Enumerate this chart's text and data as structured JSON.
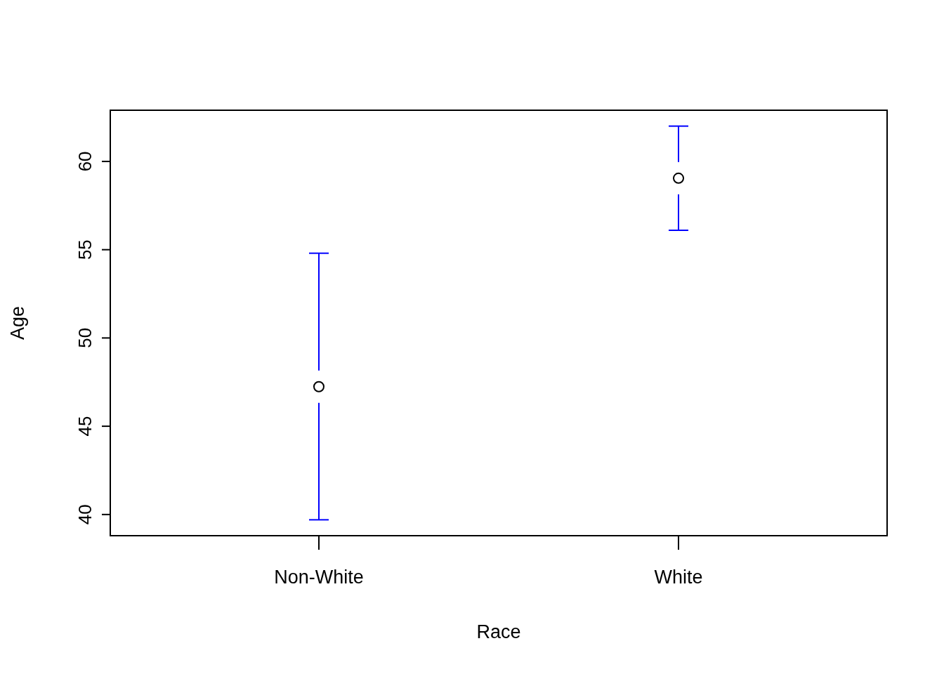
{
  "chart_data": {
    "type": "scatter",
    "xlabel": "Race",
    "ylabel": "Age",
    "categories": [
      "Non-White",
      "White"
    ],
    "series": [
      {
        "color": "#000000",
        "values": [
          47.24,
          59.05
        ],
        "errors": [
          [
            39.7,
            54.8
          ],
          [
            56.1,
            62.0
          ]
        ]
      }
    ],
    "ylim": [
      38.8,
      62.9
    ],
    "yticks": [
      40,
      45,
      50,
      55,
      60
    ],
    "marker": "circle"
  }
}
